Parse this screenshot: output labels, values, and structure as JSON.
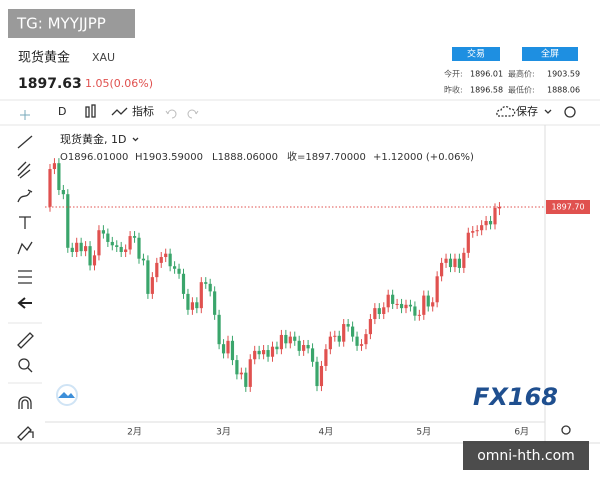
{
  "watermark": "TG: MYYJJPP",
  "header": {
    "name": "现货黄金",
    "code": "XAU",
    "price": "1897.63",
    "change": "1.05(0.06%)",
    "buttons": [
      "交易",
      "全屏"
    ],
    "stats": [
      [
        "今开:",
        "1896.01",
        "最高价:",
        "1903.59"
      ],
      [
        "昨收:",
        "1896.58",
        "最低价:",
        "1888.06"
      ]
    ]
  },
  "toolbar": {
    "interval": "D",
    "indicators": "指标",
    "save": "保存"
  },
  "chart_data": {
    "type": "candlestick",
    "title": "现货黄金, 1D",
    "legend": [
      "O1896.01000",
      "H1903.59000",
      "L1888.06000",
      "收=1897.70000",
      "+1.12000 (+0.06%)"
    ],
    "open": [
      1898,
      1943,
      1950,
      1918,
      1913,
      1849,
      1844,
      1855,
      1845,
      1851,
      1828,
      1840,
      1870,
      1866,
      1856,
      1852,
      1850,
      1844,
      1847,
      1863,
      1861,
      1836,
      1834,
      1794,
      1814,
      1831,
      1838,
      1842,
      1827,
      1824,
      1818,
      1794,
      1775,
      1784,
      1777,
      1808,
      1806,
      1797,
      1769,
      1734,
      1723,
      1738,
      1715,
      1698,
      1700,
      1683,
      1716,
      1726,
      1722,
      1727,
      1719,
      1731,
      1728,
      1745,
      1735,
      1743,
      1738,
      1726,
      1733,
      1729,
      1713,
      1684,
      1708,
      1728,
      1743,
      1744,
      1737,
      1758,
      1755,
      1743,
      1732,
      1734,
      1746,
      1764,
      1777,
      1770,
      1778,
      1793,
      1782,
      1782,
      1777,
      1781,
      1779,
      1768,
      1769,
      1792,
      1779,
      1784,
      1815,
      1831,
      1836,
      1826,
      1836,
      1825,
      1843,
      1867,
      1869,
      1870,
      1876,
      1881,
      1877,
      1896.01
    ],
    "high": [
      1949,
      1956,
      1956,
      1924,
      1919,
      1855,
      1861,
      1861,
      1857,
      1857,
      1846,
      1876,
      1876,
      1872,
      1862,
      1858,
      1856,
      1853,
      1869,
      1869,
      1867,
      1842,
      1840,
      1820,
      1837,
      1844,
      1848,
      1848,
      1833,
      1830,
      1824,
      1800,
      1790,
      1790,
      1814,
      1814,
      1812,
      1803,
      1775,
      1740,
      1744,
      1744,
      1721,
      1706,
      1706,
      1722,
      1732,
      1732,
      1733,
      1733,
      1737,
      1737,
      1751,
      1751,
      1749,
      1749,
      1744,
      1739,
      1739,
      1735,
      1719,
      1714,
      1734,
      1749,
      1750,
      1750,
      1764,
      1764,
      1761,
      1749,
      1740,
      1752,
      1770,
      1783,
      1783,
      1784,
      1799,
      1799,
      1788,
      1788,
      1787,
      1787,
      1785,
      1775,
      1798,
      1798,
      1790,
      1821,
      1837,
      1842,
      1842,
      1842,
      1842,
      1849,
      1873,
      1875,
      1876,
      1882,
      1887,
      1887,
      1902,
      1903.59
    ],
    "low": [
      1892,
      1937,
      1912,
      1907,
      1843,
      1838,
      1838,
      1839,
      1839,
      1822,
      1822,
      1834,
      1860,
      1850,
      1846,
      1844,
      1838,
      1838,
      1841,
      1855,
      1830,
      1828,
      1788,
      1788,
      1808,
      1825,
      1832,
      1821,
      1818,
      1812,
      1788,
      1769,
      1769,
      1771,
      1771,
      1800,
      1791,
      1763,
      1728,
      1717,
      1717,
      1709,
      1692,
      1692,
      1677,
      1677,
      1710,
      1716,
      1716,
      1713,
      1713,
      1722,
      1722,
      1729,
      1729,
      1732,
      1720,
      1720,
      1723,
      1707,
      1678,
      1678,
      1702,
      1722,
      1737,
      1731,
      1731,
      1749,
      1737,
      1726,
      1726,
      1728,
      1740,
      1758,
      1764,
      1764,
      1772,
      1776,
      1776,
      1771,
      1771,
      1773,
      1762,
      1762,
      1763,
      1773,
      1773,
      1778,
      1809,
      1825,
      1820,
      1820,
      1819,
      1819,
      1837,
      1861,
      1863,
      1864,
      1870,
      1871,
      1871,
      1888.06
    ],
    "close": [
      1943,
      1950,
      1918,
      1913,
      1849,
      1844,
      1855,
      1845,
      1851,
      1828,
      1840,
      1870,
      1866,
      1856,
      1852,
      1850,
      1844,
      1847,
      1863,
      1861,
      1836,
      1834,
      1794,
      1814,
      1831,
      1838,
      1842,
      1827,
      1824,
      1818,
      1794,
      1775,
      1784,
      1777,
      1808,
      1806,
      1797,
      1769,
      1734,
      1723,
      1738,
      1715,
      1698,
      1700,
      1683,
      1716,
      1726,
      1722,
      1727,
      1719,
      1731,
      1728,
      1745,
      1735,
      1743,
      1738,
      1726,
      1733,
      1729,
      1713,
      1684,
      1708,
      1728,
      1743,
      1744,
      1737,
      1758,
      1755,
      1743,
      1732,
      1734,
      1746,
      1764,
      1777,
      1770,
      1778,
      1793,
      1782,
      1782,
      1777,
      1781,
      1779,
      1768,
      1769,
      1792,
      1779,
      1784,
      1815,
      1831,
      1836,
      1826,
      1836,
      1825,
      1843,
      1867,
      1869,
      1870,
      1876,
      1881,
      1877,
      1896.58,
      1897.7
    ],
    "up_color": "#e0514f",
    "down_color": "#3aa56b",
    "ylim": [
      1643.5,
      1989.6
    ],
    "x_labels": [
      "2月",
      "3月",
      "4月",
      "5月",
      "6月"
    ],
    "price_line_label": "1897.70"
  },
  "logo": "FX168",
  "footer_watermark": "omni-hth.com"
}
